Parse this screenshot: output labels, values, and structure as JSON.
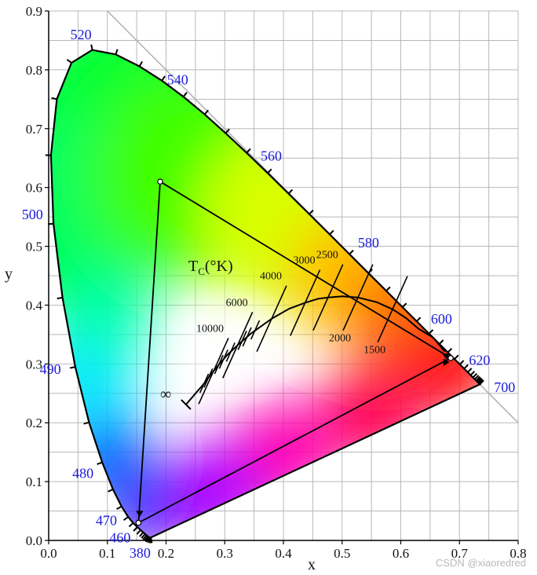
{
  "chart_data": {
    "type": "scatter",
    "xlabel": "x",
    "ylabel": "y",
    "xlim": [
      0.0,
      0.8
    ],
    "ylim": [
      0.0,
      0.9
    ],
    "x_ticks": [
      "0.0",
      "0.1",
      "0.2",
      "0.3",
      "0.4",
      "0.5",
      "0.6",
      "0.7",
      "0.8"
    ],
    "y_ticks": [
      "0.0",
      "0.1",
      "0.2",
      "0.3",
      "0.4",
      "0.5",
      "0.6",
      "0.7",
      "0.8",
      "0.9"
    ],
    "grid": true,
    "spectral_locus": [
      [
        0.1741,
        0.005
      ],
      [
        0.174,
        0.005
      ],
      [
        0.1736,
        0.0049
      ],
      [
        0.173,
        0.0048
      ],
      [
        0.1721,
        0.0048
      ],
      [
        0.1714,
        0.0051
      ],
      [
        0.1703,
        0.0058
      ],
      [
        0.1689,
        0.0069
      ],
      [
        0.1669,
        0.0086
      ],
      [
        0.1644,
        0.0109
      ],
      [
        0.1611,
        0.0138
      ],
      [
        0.1566,
        0.0177
      ],
      [
        0.151,
        0.0227
      ],
      [
        0.144,
        0.0297
      ],
      [
        0.1355,
        0.0399
      ],
      [
        0.1241,
        0.0578
      ],
      [
        0.1096,
        0.0868
      ],
      [
        0.0913,
        0.1327
      ],
      [
        0.0687,
        0.2007
      ],
      [
        0.0454,
        0.295
      ],
      [
        0.0235,
        0.4127
      ],
      [
        0.0082,
        0.5384
      ],
      [
        0.0039,
        0.6548
      ],
      [
        0.0139,
        0.7502
      ],
      [
        0.0389,
        0.812
      ],
      [
        0.0743,
        0.8338
      ],
      [
        0.1142,
        0.8262
      ],
      [
        0.1547,
        0.8059
      ],
      [
        0.1929,
        0.7816
      ],
      [
        0.2296,
        0.7543
      ],
      [
        0.2658,
        0.7243
      ],
      [
        0.3016,
        0.6923
      ],
      [
        0.3373,
        0.6589
      ],
      [
        0.3731,
        0.6245
      ],
      [
        0.4087,
        0.5896
      ],
      [
        0.4441,
        0.5547
      ],
      [
        0.4788,
        0.5202
      ],
      [
        0.5125,
        0.4866
      ],
      [
        0.5448,
        0.4544
      ],
      [
        0.5752,
        0.4242
      ],
      [
        0.6029,
        0.3965
      ],
      [
        0.627,
        0.3725
      ],
      [
        0.6482,
        0.3514
      ],
      [
        0.6658,
        0.334
      ],
      [
        0.6801,
        0.3197
      ],
      [
        0.6915,
        0.3083
      ],
      [
        0.7006,
        0.2993
      ],
      [
        0.7079,
        0.292
      ],
      [
        0.714,
        0.2859
      ],
      [
        0.719,
        0.2809
      ],
      [
        0.723,
        0.277
      ],
      [
        0.726,
        0.274
      ],
      [
        0.7283,
        0.2717
      ],
      [
        0.73,
        0.27
      ],
      [
        0.7311,
        0.2689
      ],
      [
        0.732,
        0.268
      ],
      [
        0.7327,
        0.2673
      ],
      [
        0.7334,
        0.2666
      ],
      [
        0.734,
        0.266
      ],
      [
        0.7344,
        0.2656
      ],
      [
        0.7346,
        0.2654
      ],
      [
        0.7347,
        0.2653
      ]
    ],
    "wavelength_labels": [
      {
        "text": "380",
        "x": 0.1741,
        "y": 0.005
      },
      {
        "text": "460",
        "x": 0.144,
        "y": 0.0297
      },
      {
        "text": "470",
        "x": 0.1241,
        "y": 0.0578
      },
      {
        "text": "480",
        "x": 0.0913,
        "y": 0.1327
      },
      {
        "text": "490",
        "x": 0.0454,
        "y": 0.295
      },
      {
        "text": "500",
        "x": 0.0082,
        "y": 0.5384
      },
      {
        "text": "520",
        "x": 0.0743,
        "y": 0.8338
      },
      {
        "text": "540",
        "x": 0.2296,
        "y": 0.7543
      },
      {
        "text": "560",
        "x": 0.3731,
        "y": 0.6245
      },
      {
        "text": "580",
        "x": 0.5125,
        "y": 0.4866
      },
      {
        "text": "600",
        "x": 0.627,
        "y": 0.3725
      },
      {
        "text": "620",
        "x": 0.6915,
        "y": 0.3083
      },
      {
        "text": "700",
        "x": 0.7347,
        "y": 0.2653
      }
    ],
    "gamut_triangle": [
      {
        "x": 0.19,
        "y": 0.61
      },
      {
        "x": 0.685,
        "y": 0.31
      },
      {
        "x": 0.153,
        "y": 0.03
      }
    ],
    "planckian_locus": [
      [
        0.234,
        0.231
      ],
      [
        0.252,
        0.252
      ],
      [
        0.265,
        0.267
      ],
      [
        0.281,
        0.288
      ],
      [
        0.304,
        0.315
      ],
      [
        0.322,
        0.332
      ],
      [
        0.345,
        0.352
      ],
      [
        0.38,
        0.377
      ],
      [
        0.41,
        0.394
      ],
      [
        0.437,
        0.404
      ],
      [
        0.46,
        0.411
      ],
      [
        0.476,
        0.413
      ],
      [
        0.5,
        0.415
      ],
      [
        0.527,
        0.413
      ],
      [
        0.559,
        0.405
      ],
      [
        0.586,
        0.393
      ],
      [
        0.609,
        0.378
      ],
      [
        0.63,
        0.36
      ],
      [
        0.655,
        0.345
      ],
      [
        0.675,
        0.321
      ]
    ],
    "isotherms": [
      {
        "temp": "10000",
        "x": 0.281,
        "y": 0.288
      },
      {
        "temp": "6000",
        "x": 0.322,
        "y": 0.332
      },
      {
        "temp": "4000",
        "x": 0.38,
        "y": 0.377
      },
      {
        "temp": "3000",
        "x": 0.437,
        "y": 0.404
      },
      {
        "temp": "2500",
        "x": 0.476,
        "y": 0.413
      },
      {
        "temp": "2000",
        "x": 0.527,
        "y": 0.413
      },
      {
        "temp": "1500",
        "x": 0.586,
        "y": 0.393
      }
    ],
    "minor_isotherms": [
      [
        0.265,
        0.267
      ],
      [
        0.272,
        0.276
      ],
      [
        0.29,
        0.299
      ],
      [
        0.298,
        0.308
      ],
      [
        0.31,
        0.32
      ],
      [
        0.33,
        0.34
      ],
      [
        0.338,
        0.346
      ],
      [
        0.352,
        0.358
      ]
    ],
    "ct_title": "Tc(°K)",
    "ct_title_main": "T",
    "ct_title_sub": "C",
    "ct_title_rest": "(°K)",
    "infinity_label": "∞"
  },
  "watermark": "CSDN @xiaoredred"
}
